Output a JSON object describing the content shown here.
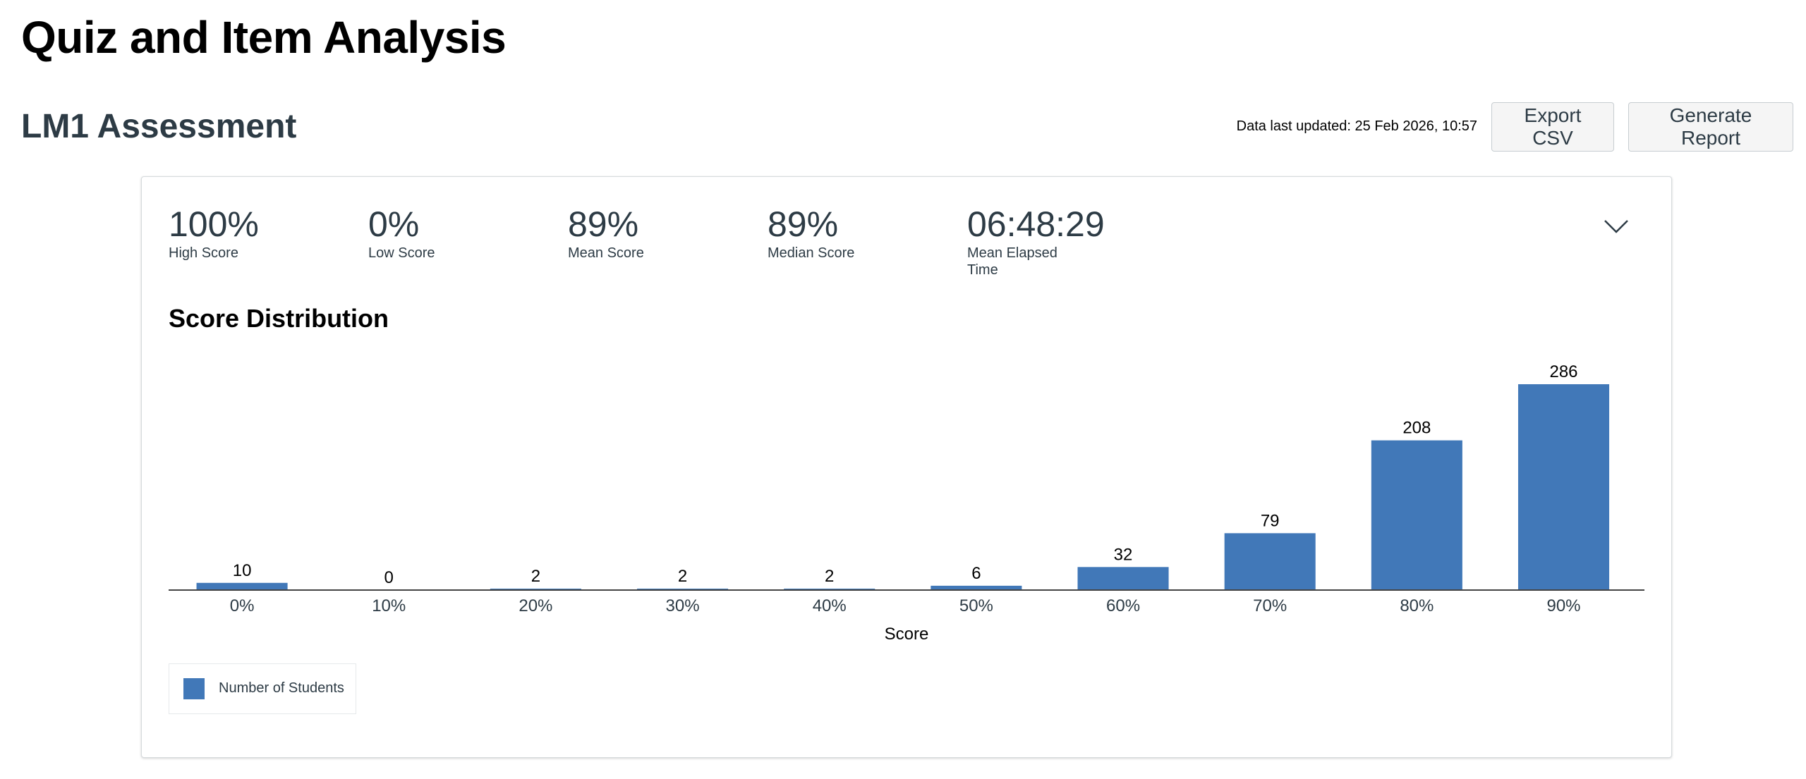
{
  "page": {
    "title": "Quiz and Item Analysis"
  },
  "header": {
    "quiz_title": "LM1 Assessment",
    "updated_text": "Data last updated: 25 Feb 2026, 10:57",
    "export_label": "Export CSV",
    "report_label": "Generate Report"
  },
  "stats": {
    "high": {
      "value": "100%",
      "label": "High Score"
    },
    "low": {
      "value": "0%",
      "label": "Low Score"
    },
    "mean": {
      "value": "89%",
      "label": "Mean Score"
    },
    "median": {
      "value": "89%",
      "label": "Median Score"
    },
    "elapsed": {
      "value": "06:48:29",
      "label": "Mean Elapsed Time"
    }
  },
  "toggle_icon": "chevron-down-icon",
  "chart_data": {
    "type": "bar",
    "title": "Score Distribution",
    "categories": [
      "0%",
      "10%",
      "20%",
      "30%",
      "40%",
      "50%",
      "60%",
      "70%",
      "80%",
      "90%"
    ],
    "series": [
      {
        "name": "Number of Students",
        "values": [
          10,
          0,
          2,
          2,
          2,
          6,
          32,
          79,
          208,
          286
        ],
        "color": "#4178b8"
      }
    ],
    "xlabel": "Score",
    "ylabel": "",
    "ylim": [
      0,
      286
    ],
    "grid": false,
    "legend": "bottom-left"
  }
}
